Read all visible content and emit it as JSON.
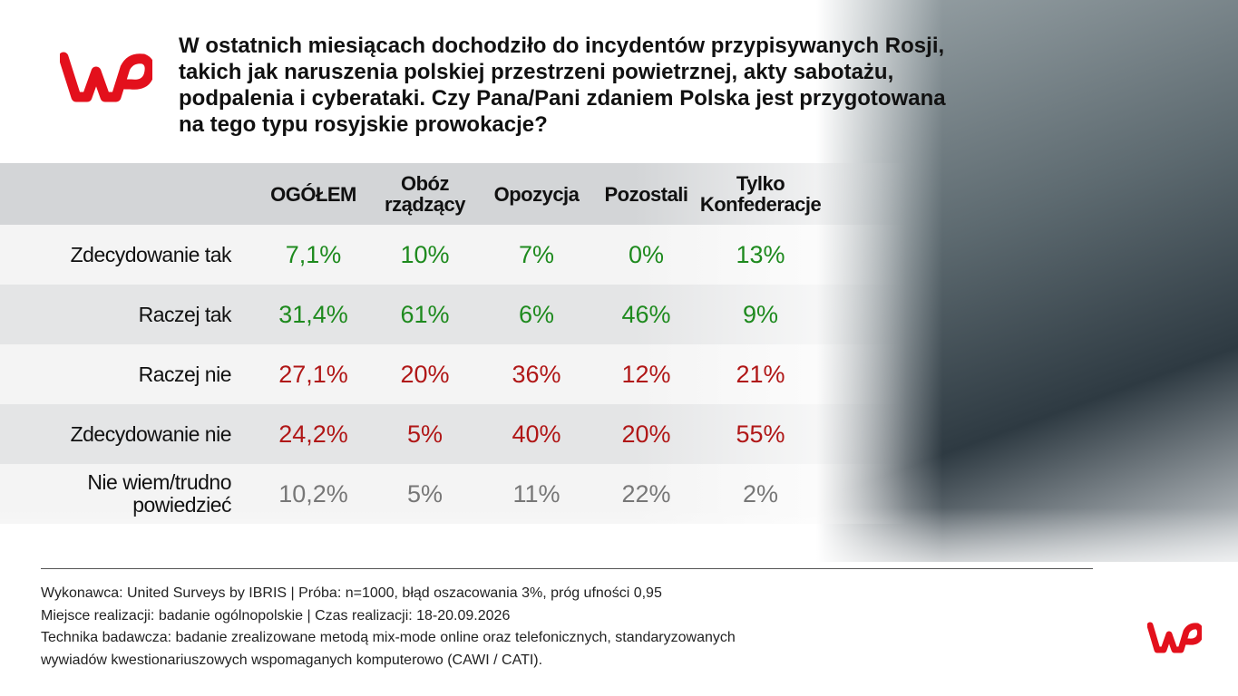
{
  "title": "W ostatnich miesiącach dochodziło do incydentów przypisywanych Rosji, takich jak naruszenia polskiej przestrzeni powietrznej, akty sabotażu, podpalenia i cyberataki. Czy Pana/Pani zdaniem Polska jest przygotowana na tego typu rosyjskie prowokacje?",
  "table": {
    "columns": [
      "OGÓŁEM",
      "Obóz rządzący",
      "Opozycja",
      "Pozostali",
      "Tylko Konfederacje"
    ],
    "rows": [
      {
        "label": "Zdecydowanie tak",
        "color": "#1e8a1e",
        "values": [
          "7,1%",
          "10%",
          "7%",
          "0%",
          "13%"
        ]
      },
      {
        "label": "Raczej tak",
        "color": "#1e8a1e",
        "values": [
          "31,4%",
          "61%",
          "6%",
          "46%",
          "9%"
        ]
      },
      {
        "label": "Raczej nie",
        "color": "#b01717",
        "values": [
          "27,1%",
          "20%",
          "36%",
          "12%",
          "21%"
        ]
      },
      {
        "label": "Zdecydowanie nie",
        "color": "#b01717",
        "values": [
          "24,2%",
          "5%",
          "40%",
          "20%",
          "55%"
        ]
      },
      {
        "label": "Nie wiem/trudno powiedzieć",
        "color": "#777777",
        "values": [
          "10,2%",
          "5%",
          "11%",
          "22%",
          "2%"
        ]
      }
    ]
  },
  "footer": [
    "Wykonawca: United Surveys by IBRIS | Próba: n=1000, błąd oszacowania 3%, próg ufności 0,95",
    "Miejsce realizacji: badanie ogólnopolskie | Czas realizacji: 18-20.09.2026",
    "Technika badawcza: badanie zrealizowane metodą mix-mode online oraz telefonicznych, standaryzowanych",
    "wywiadów kwestionariuszowych wspomaganych komputerowo (CAWI / CATI)."
  ]
}
